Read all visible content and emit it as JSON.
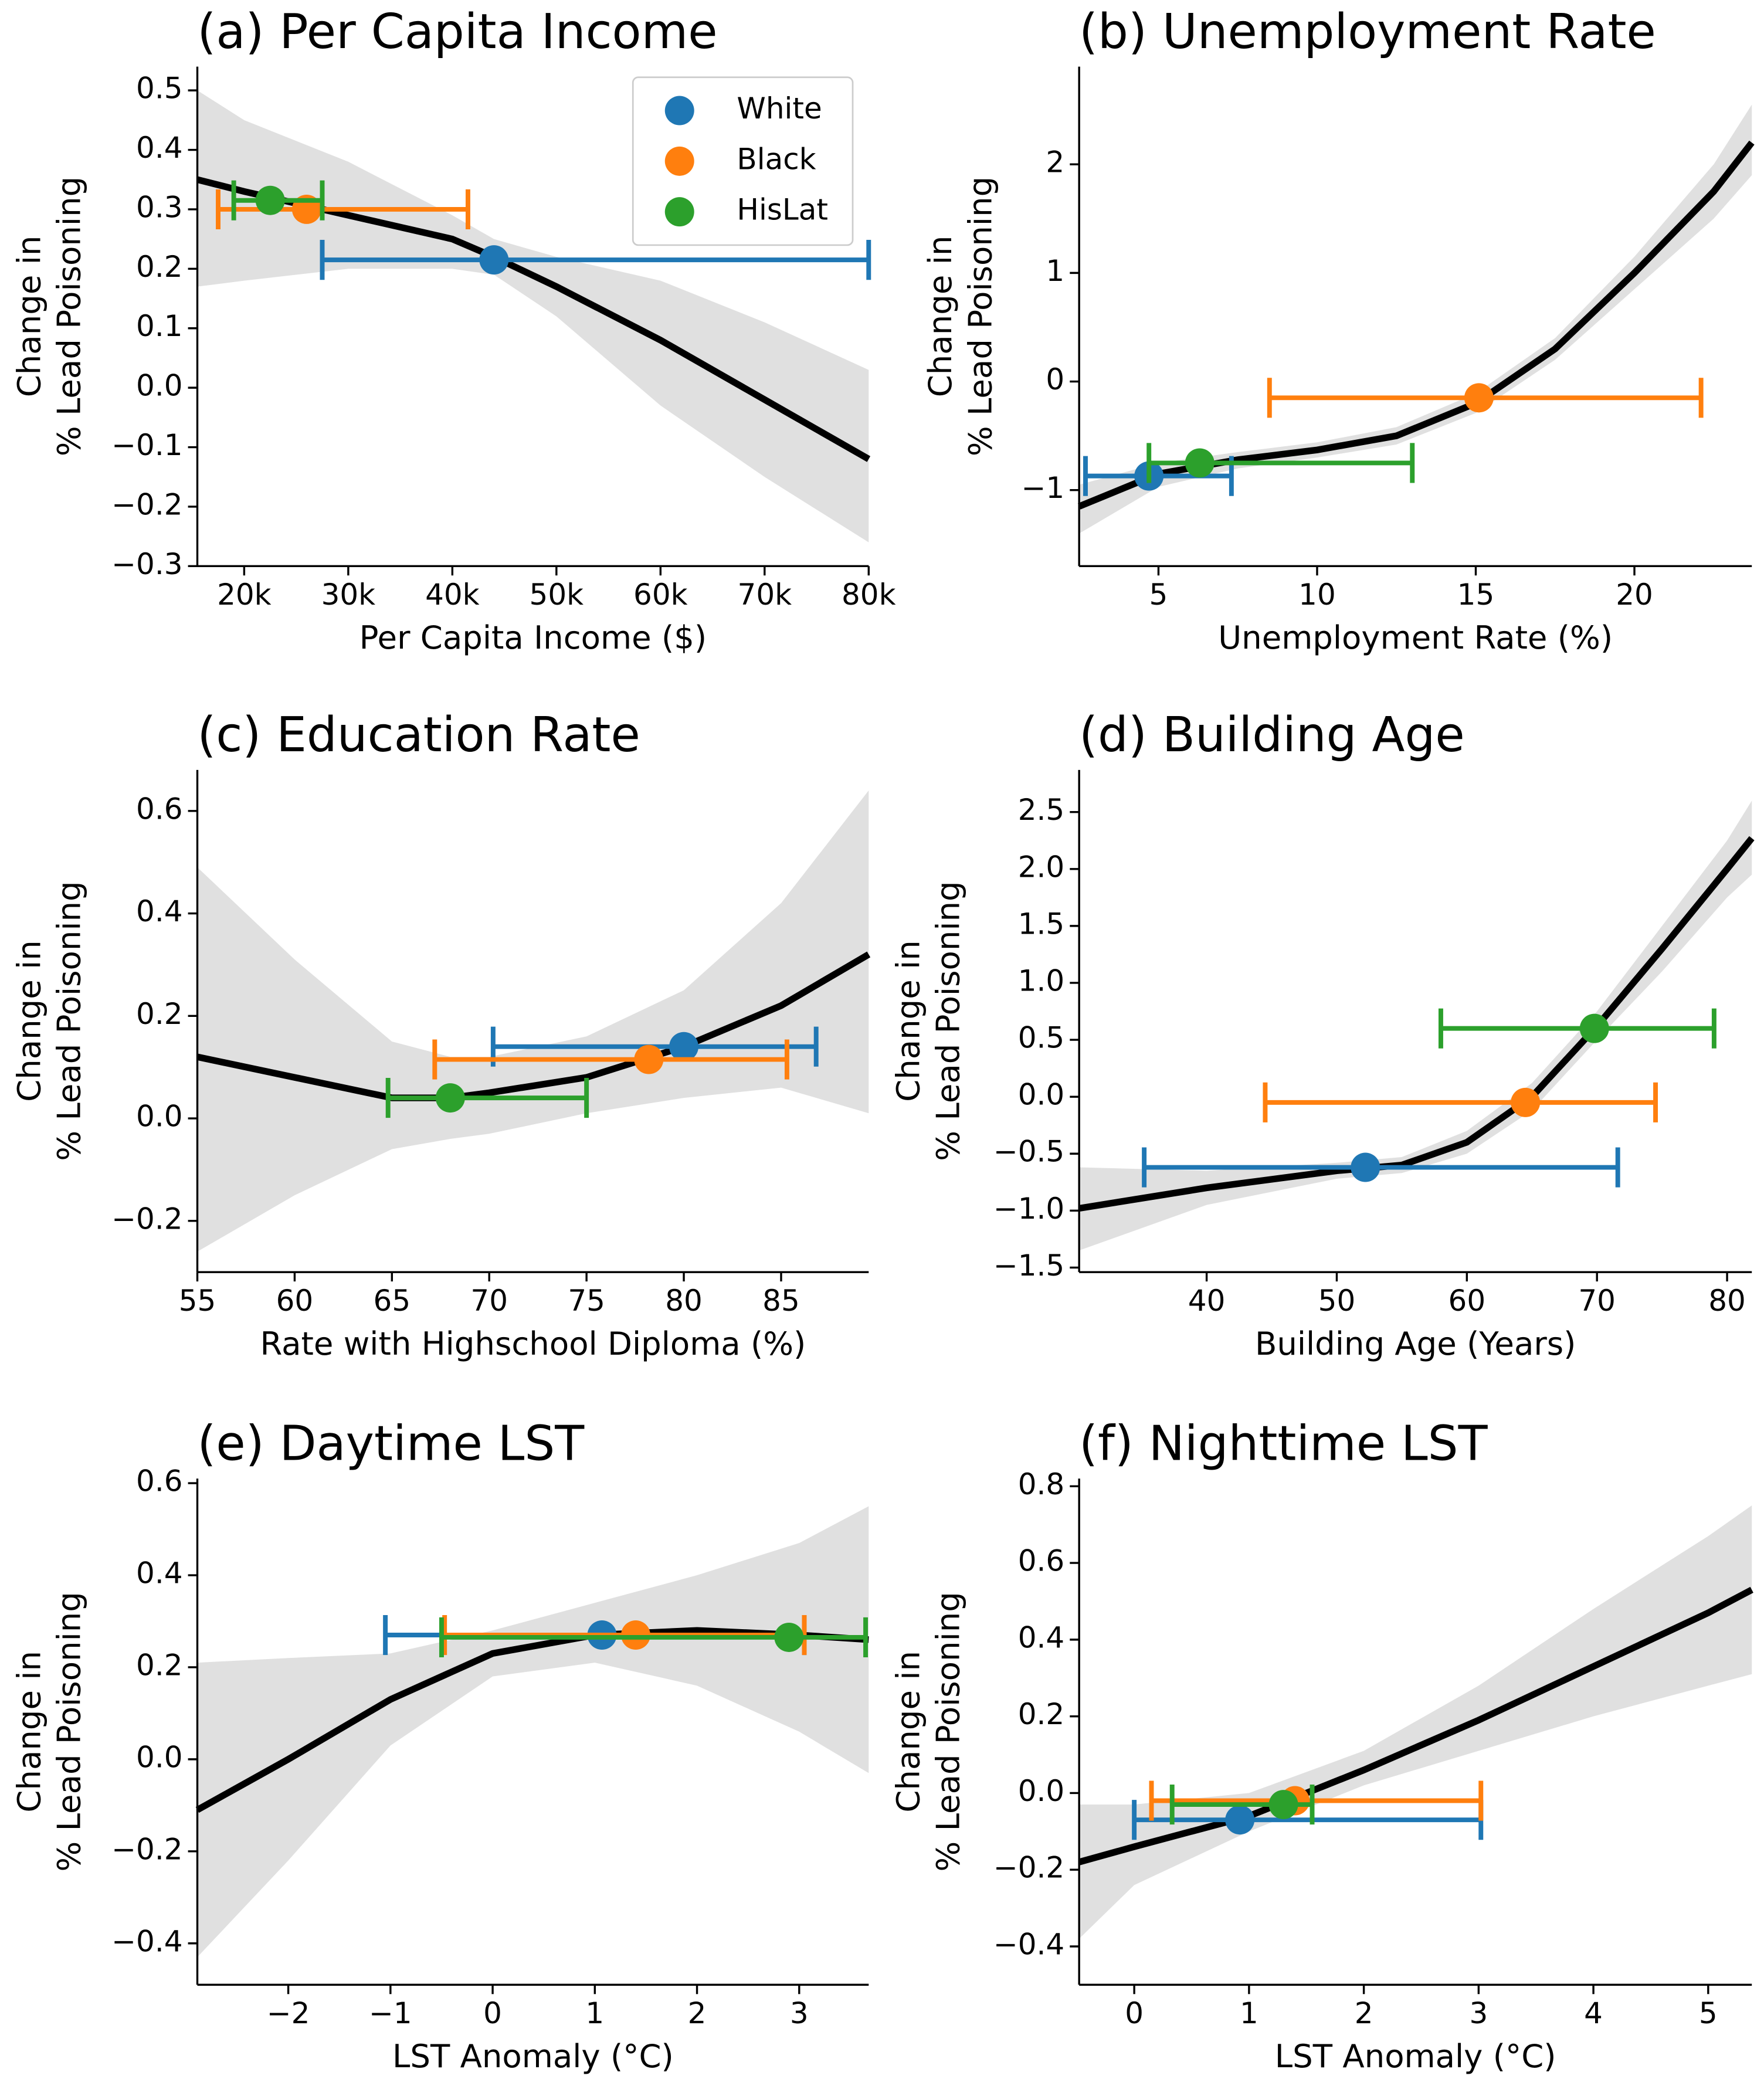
{
  "chart_data": [
    {
      "type": "line",
      "title": "(a) Per Capita Income",
      "xlabel": "Per Capita Income ($)",
      "ylabel": [
        "Change in",
        "% Lead Poisoning"
      ],
      "xlim": [
        15500,
        80000
      ],
      "ylim": [
        -0.3,
        0.54
      ],
      "xticks": [
        {
          "value": 20000,
          "label": "20k"
        },
        {
          "value": 30000,
          "label": "30k"
        },
        {
          "value": 40000,
          "label": "40k"
        },
        {
          "value": 50000,
          "label": "50k"
        },
        {
          "value": 60000,
          "label": "60k"
        },
        {
          "value": 70000,
          "label": "70k"
        },
        {
          "value": 80000,
          "label": "80k"
        }
      ],
      "yticks": [
        {
          "value": -0.3,
          "label": "−0.3"
        },
        {
          "value": -0.2,
          "label": "−0.2"
        },
        {
          "value": -0.1,
          "label": "−0.1"
        },
        {
          "value": 0,
          "label": "0.0"
        },
        0.1,
        0.2,
        0.3,
        0.4,
        0.5
      ],
      "legend": "upper right",
      "line_color": "#000000",
      "band_color": "#d3d3d3",
      "x": [
        15500,
        20000,
        30000,
        40000,
        44000,
        50000,
        60000,
        70000,
        80000
      ],
      "y": [
        0.35,
        0.33,
        0.29,
        0.25,
        0.22,
        0.17,
        0.08,
        -0.02,
        -0.12
      ],
      "ci_upper": [
        0.5,
        0.45,
        0.38,
        0.29,
        0.25,
        0.22,
        0.18,
        0.11,
        0.03
      ],
      "ci_lower": [
        0.17,
        0.18,
        0.2,
        0.2,
        0.19,
        0.12,
        -0.03,
        -0.15,
        -0.26
      ],
      "series": [
        {
          "name": "White",
          "color": "#1f77b4",
          "x": [
            44000
          ],
          "values": [
            0.215
          ],
          "x_lo": [
            27500
          ],
          "x_hi": [
            80000
          ]
        },
        {
          "name": "Black",
          "color": "#ff7f0e",
          "x": [
            26000
          ],
          "values": [
            0.3
          ],
          "x_lo": [
            17500
          ],
          "x_hi": [
            41500
          ]
        },
        {
          "name": "HisLat",
          "color": "#2ca02c",
          "x": [
            22500
          ],
          "values": [
            0.315
          ],
          "x_lo": [
            19000
          ],
          "x_hi": [
            27500
          ]
        }
      ]
    },
    {
      "type": "line",
      "title": "(b) Unemployment Rate",
      "xlabel": "Unemployment Rate (%)",
      "ylabel": [
        "Change in",
        "% Lead Poisoning"
      ],
      "xlim": [
        2.5,
        23.7
      ],
      "ylim": [
        -1.7,
        2.9
      ],
      "xticks": [
        5,
        10,
        15,
        20
      ],
      "yticks": [
        {
          "value": -1,
          "label": "−1"
        },
        0,
        1,
        2
      ],
      "line_color": "#000000",
      "band_color": "#d3d3d3",
      "x": [
        2.5,
        5,
        7.5,
        10,
        12.5,
        15,
        17.5,
        20,
        22.5,
        23.7
      ],
      "y": [
        -1.15,
        -0.85,
        -0.72,
        -0.63,
        -0.5,
        -0.2,
        0.3,
        1.0,
        1.75,
        2.2
      ],
      "ci_upper": [
        -0.95,
        -0.75,
        -0.65,
        -0.56,
        -0.42,
        -0.11,
        0.4,
        1.15,
        2.0,
        2.55
      ],
      "ci_lower": [
        -1.4,
        -0.97,
        -0.8,
        -0.7,
        -0.58,
        -0.29,
        0.2,
        0.85,
        1.5,
        1.9
      ],
      "series": [
        {
          "color": "#1f77b4",
          "x": [
            4.7
          ],
          "values": [
            -0.87
          ],
          "x_lo": [
            2.7
          ],
          "x_hi": [
            7.3
          ]
        },
        {
          "color": "#ff7f0e",
          "x": [
            15.1
          ],
          "values": [
            -0.15
          ],
          "x_lo": [
            8.5
          ],
          "x_hi": [
            22.1
          ]
        },
        {
          "color": "#2ca02c",
          "x": [
            6.3
          ],
          "values": [
            -0.75
          ],
          "x_lo": [
            4.7
          ],
          "x_hi": [
            13.0
          ]
        }
      ]
    },
    {
      "type": "line",
      "title": "(c) Education Rate",
      "xlabel": "Rate with Highschool Diploma (%)",
      "ylabel": [
        "Change in",
        "% Lead Poisoning"
      ],
      "xlim": [
        55,
        89.5
      ],
      "ylim": [
        -0.3,
        0.68
      ],
      "xticks": [
        55,
        60,
        65,
        70,
        75,
        80,
        85
      ],
      "yticks": [
        {
          "value": -0.2,
          "label": "−0.2"
        },
        {
          "value": 0,
          "label": "0.0"
        },
        0.2,
        0.4,
        0.6
      ],
      "line_color": "#000000",
      "band_color": "#d3d3d3",
      "x": [
        55,
        60,
        65,
        68,
        70,
        75,
        80,
        85,
        89.5
      ],
      "y": [
        0.12,
        0.08,
        0.04,
        0.04,
        0.05,
        0.08,
        0.14,
        0.22,
        0.32
      ],
      "ci_upper": [
        0.49,
        0.31,
        0.15,
        0.12,
        0.12,
        0.16,
        0.25,
        0.42,
        0.64
      ],
      "ci_lower": [
        -0.26,
        -0.15,
        -0.06,
        -0.04,
        -0.03,
        0.01,
        0.04,
        0.06,
        0.01
      ],
      "series": [
        {
          "color": "#1f77b4",
          "x": [
            80
          ],
          "values": [
            0.14
          ],
          "x_lo": [
            70.2
          ],
          "x_hi": [
            86.8
          ]
        },
        {
          "color": "#ff7f0e",
          "x": [
            78.2
          ],
          "values": [
            0.115
          ],
          "x_lo": [
            67.2
          ],
          "x_hi": [
            85.3
          ]
        },
        {
          "color": "#2ca02c",
          "x": [
            68
          ],
          "values": [
            0.04
          ],
          "x_lo": [
            64.8
          ],
          "x_hi": [
            75
          ]
        }
      ]
    },
    {
      "type": "line",
      "title": "(d) Building Age",
      "xlabel": "Building Age (Years)",
      "ylabel": [
        "Change in",
        "% Lead Poisoning"
      ],
      "xlim": [
        30.2,
        81.9
      ],
      "ylim": [
        -1.54,
        2.87
      ],
      "xticks": [
        40,
        50,
        60,
        70,
        80
      ],
      "yticks": [
        {
          "value": -1.5,
          "label": "−1.5"
        },
        {
          "value": -1,
          "label": "−1.0"
        },
        {
          "value": -0.5,
          "label": "−0.5"
        },
        {
          "value": 0,
          "label": "0.0"
        },
        0.5,
        {
          "value": 1,
          "label": "1.0"
        },
        1.5,
        {
          "value": 2,
          "label": "2.0"
        },
        2.5
      ],
      "line_color": "#000000",
      "band_color": "#d3d3d3",
      "x": [
        30.2,
        40,
        50,
        55,
        60,
        65,
        70,
        75,
        80,
        81.9
      ],
      "y": [
        -0.98,
        -0.8,
        -0.65,
        -0.6,
        -0.4,
        0.0,
        0.62,
        1.3,
        2.0,
        2.27
      ],
      "ci_upper": [
        -0.62,
        -0.65,
        -0.58,
        -0.53,
        -0.3,
        0.12,
        0.75,
        1.5,
        2.25,
        2.6
      ],
      "ci_lower": [
        -1.35,
        -0.95,
        -0.72,
        -0.67,
        -0.5,
        -0.12,
        0.5,
        1.1,
        1.75,
        1.95
      ],
      "series": [
        {
          "color": "#1f77b4",
          "x": [
            52.2
          ],
          "values": [
            -0.62
          ],
          "x_lo": [
            35.2
          ],
          "x_hi": [
            71.6
          ]
        },
        {
          "color": "#ff7f0e",
          "x": [
            64.5
          ],
          "values": [
            -0.05
          ],
          "x_lo": [
            44.5
          ],
          "x_hi": [
            74.5
          ]
        },
        {
          "color": "#2ca02c",
          "x": [
            69.8
          ],
          "values": [
            0.6
          ],
          "x_lo": [
            58
          ],
          "x_hi": [
            79
          ]
        }
      ]
    },
    {
      "type": "line",
      "title": "(e) Daytime LST",
      "xlabel": "LST Anomaly (°C)",
      "ylabel": [
        "Change in",
        "% Lead Poisoning"
      ],
      "xlim": [
        -2.89,
        3.68
      ],
      "ylim": [
        -0.49,
        0.61
      ],
      "xticks": [
        {
          "value": -2,
          "label": "−2"
        },
        {
          "value": -1,
          "label": "−1"
        },
        0,
        1,
        2,
        3
      ],
      "yticks": [
        {
          "value": -0.4,
          "label": "−0.4"
        },
        {
          "value": -0.2,
          "label": "−0.2"
        },
        {
          "value": 0,
          "label": "0.0"
        },
        0.2,
        0.4,
        0.6
      ],
      "line_color": "#000000",
      "band_color": "#d3d3d3",
      "x": [
        -2.89,
        -2,
        -1,
        0,
        1,
        2,
        3,
        3.68
      ],
      "y": [
        -0.11,
        0.0,
        0.13,
        0.23,
        0.27,
        0.28,
        0.27,
        0.26
      ],
      "ci_upper": [
        0.21,
        0.22,
        0.23,
        0.28,
        0.34,
        0.4,
        0.47,
        0.55
      ],
      "ci_lower": [
        -0.43,
        -0.22,
        0.03,
        0.18,
        0.21,
        0.16,
        0.06,
        -0.03
      ],
      "series": [
        {
          "color": "#1f77b4",
          "x": [
            1.07
          ],
          "values": [
            0.27
          ],
          "x_lo": [
            -1.05
          ],
          "x_hi": [
            3.05
          ]
        },
        {
          "color": "#ff7f0e",
          "x": [
            1.4
          ],
          "values": [
            0.27
          ],
          "x_lo": [
            -0.47
          ],
          "x_hi": [
            3.05
          ]
        },
        {
          "color": "#2ca02c",
          "x": [
            2.9
          ],
          "values": [
            0.265
          ],
          "x_lo": [
            -0.5
          ],
          "x_hi": [
            3.65
          ]
        }
      ]
    },
    {
      "type": "line",
      "title": "(f) Nighttime LST",
      "xlabel": "LST Anomaly (°C)",
      "ylabel": [
        "Change in",
        "% Lead Poisoning"
      ],
      "xlim": [
        -0.48,
        5.38
      ],
      "ylim": [
        -0.5,
        0.82
      ],
      "xticks": [
        0,
        1,
        2,
        3,
        4,
        5
      ],
      "yticks": [
        {
          "value": -0.4,
          "label": "−0.4"
        },
        {
          "value": -0.2,
          "label": "−0.2"
        },
        {
          "value": 0,
          "label": "0.0"
        },
        0.2,
        0.4,
        0.6,
        0.8
      ],
      "line_color": "#000000",
      "band_color": "#d3d3d3",
      "x": [
        -0.48,
        0,
        1,
        2,
        3,
        4,
        5,
        5.38
      ],
      "y": [
        -0.18,
        -0.14,
        -0.06,
        0.06,
        0.19,
        0.33,
        0.47,
        0.53
      ],
      "ci_upper": [
        -0.03,
        -0.03,
        0.0,
        0.11,
        0.28,
        0.48,
        0.67,
        0.75
      ],
      "ci_lower": [
        -0.38,
        -0.24,
        -0.1,
        0.02,
        0.11,
        0.2,
        0.28,
        0.31
      ],
      "series": [
        {
          "color": "#1f77b4",
          "x": [
            0.92
          ],
          "values": [
            -0.07
          ],
          "x_lo": [
            0
          ],
          "x_hi": [
            3.02
          ]
        },
        {
          "color": "#ff7f0e",
          "x": [
            1.4
          ],
          "values": [
            -0.02
          ],
          "x_lo": [
            0.15
          ],
          "x_hi": [
            3.02
          ]
        },
        {
          "color": "#2ca02c",
          "x": [
            1.3
          ],
          "values": [
            -0.03
          ],
          "x_lo": [
            0.33
          ],
          "x_hi": [
            1.55
          ]
        }
      ]
    }
  ]
}
